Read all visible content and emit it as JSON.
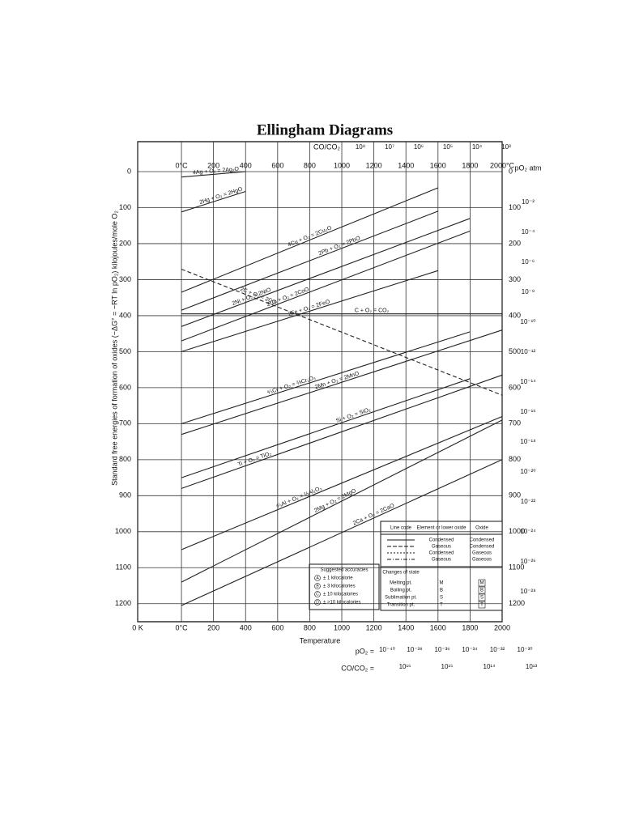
{
  "title": "Ellingham Diagrams",
  "chart_data": {
    "type": "line",
    "y_label": "Standard free energies of formation of oxides (−ΔG° = −RT ln pO₂) kilojoules/mole O₂",
    "x_label": "Temperature",
    "right_label": "pO₂ atm",
    "xlim": [
      -273,
      2000
    ],
    "ylim": [
      0,
      1250
    ],
    "grid": true,
    "inverted_y": true,
    "xticks": [
      {
        "value": -273,
        "label": "0 K"
      },
      {
        "value": 0,
        "label": "0°C"
      },
      200,
      400,
      600,
      800,
      1000,
      1200,
      1400,
      1600,
      1800,
      2000
    ],
    "x_top_ticks": [
      {
        "value": 0,
        "label": "0°C"
      },
      200,
      400,
      600,
      800,
      1000,
      1200,
      1400,
      1600,
      1800,
      {
        "value": 2000,
        "label": "2000°C"
      }
    ],
    "yticks": [
      0,
      100,
      200,
      300,
      400,
      500,
      600,
      700,
      800,
      900,
      1000,
      1100,
      1200
    ],
    "series": [
      {
        "name": "4Ag + O₂ = 2Ag₂O",
        "color": "#222",
        "x": [
          0,
          400
        ],
        "values": [
          15,
          0
        ]
      },
      {
        "name": "2Hg + O₂ = 2HgO",
        "color": "#222",
        "x": [
          0,
          400
        ],
        "values": [
          112,
          55
        ]
      },
      {
        "name": "4Cu + O₂ = 2Cu₂O",
        "color": "#222",
        "x": [
          0,
          1600
        ],
        "values": [
          335,
          45
        ]
      },
      {
        "name": "2Pb + O₂ = 2PbO",
        "color": "#222",
        "x": [
          0,
          1600
        ],
        "values": [
          385,
          110
        ]
      },
      {
        "name": "2Ni + O₂ = 2NiO",
        "color": "#222",
        "x": [
          0,
          1800
        ],
        "values": [
          430,
          130
        ]
      },
      {
        "name": "2Co + O₂ = 2CoO",
        "color": "#222",
        "x": [
          0,
          1800
        ],
        "values": [
          470,
          165
        ]
      },
      {
        "name": "2Fe + O₂ = 2FeO",
        "color": "#222",
        "x": [
          0,
          1600
        ],
        "values": [
          500,
          275
        ]
      },
      {
        "name": "C + O₂ = CO₂",
        "color": "#222",
        "x": [
          0,
          2000
        ],
        "values": [
          395,
          395
        ]
      },
      {
        "name": "2C + O₂ = 2CO",
        "color": "#222",
        "x": [
          0,
          2000
        ],
        "values": [
          271,
          621
        ],
        "line_style": "dashed"
      },
      {
        "name": "⁴⁄₃Cr + O₂ = ⅔Cr₂O₃",
        "color": "#222",
        "x": [
          0,
          1800
        ],
        "values": [
          700,
          445
        ]
      },
      {
        "name": "2Mn + O₂ = 2MnO",
        "color": "#222",
        "x": [
          0,
          2000
        ],
        "values": [
          730,
          440
        ]
      },
      {
        "name": "Si + O₂ = SiO₂",
        "color": "#222",
        "x": [
          0,
          1800
        ],
        "values": [
          850,
          575
        ]
      },
      {
        "name": "Ti + O₂ = TiO₂",
        "color": "#222",
        "x": [
          0,
          2000
        ],
        "values": [
          880,
          565
        ]
      },
      {
        "name": "⁴⁄₃Al + O₂ = ⅔Al₂O₃",
        "color": "#222",
        "x": [
          0,
          2000
        ],
        "values": [
          1050,
          680
        ]
      },
      {
        "name": "2Mg + O₂ = 2MgO",
        "color": "#222",
        "x": [
          0,
          2000
        ],
        "values": [
          1140,
          690
        ]
      },
      {
        "name": "2Ca + O₂ = 2CaO",
        "color": "#222",
        "x": [
          0,
          2000
        ],
        "values": [
          1205,
          800
        ]
      }
    ]
  },
  "scales": {
    "co_co2_label": "CO/CO₂",
    "co_co2_top": [
      "10⁸",
      "10⁷",
      "10⁶",
      "10⁵",
      "10⁴",
      "10³"
    ],
    "po2_right": [
      "10⁻²",
      "10⁻⁴",
      "10⁻⁶",
      "10⁻⁸",
      "10⁻¹⁰",
      "10⁻¹²",
      "10⁻¹⁴",
      "10⁻¹⁶",
      "10⁻¹⁸",
      "10⁻²⁰",
      "10⁻²²",
      "10⁻²⁴",
      "10⁻²⁶",
      "10⁻²⁸"
    ],
    "po2_bottom_label": "pO₂ =",
    "po2_bottom": [
      "10⁻⁴⁰",
      "10⁻³⁸",
      "10⁻³⁶",
      "10⁻³⁴",
      "10⁻³²",
      "10⁻³⁰"
    ],
    "co_co2_bottom_label": "CO/CO₂ =",
    "co_co2_bottom": [
      "10¹⁶",
      "10¹⁵",
      "10¹⁴",
      "10¹³"
    ]
  },
  "legend": {
    "headers": [
      "Line code",
      "Element or lower oxide",
      "Oxide"
    ],
    "rows": [
      [
        "Condensed",
        "Condensed"
      ],
      [
        "Gaseous",
        "Condensed"
      ],
      [
        "Condensed",
        "Gaseous"
      ],
      [
        "Gaseous",
        "Gaseous"
      ]
    ],
    "changes_title": "Changes of state",
    "changes": [
      [
        "Melting pt.",
        "M",
        "M"
      ],
      [
        "Boiling pt.",
        "B",
        "B"
      ],
      [
        "Sublimation pt.",
        "S",
        "S"
      ],
      [
        "Transition pt.",
        "T",
        "T"
      ]
    ]
  },
  "accuracies": {
    "title": "Suggested accuracies",
    "rows": [
      [
        "A",
        "± 1 kilocalorie"
      ],
      [
        "B",
        "± 3 kilocalories"
      ],
      [
        "C",
        "± 10 kilocalories"
      ],
      [
        "D",
        "± >10 kilocalories"
      ]
    ]
  }
}
